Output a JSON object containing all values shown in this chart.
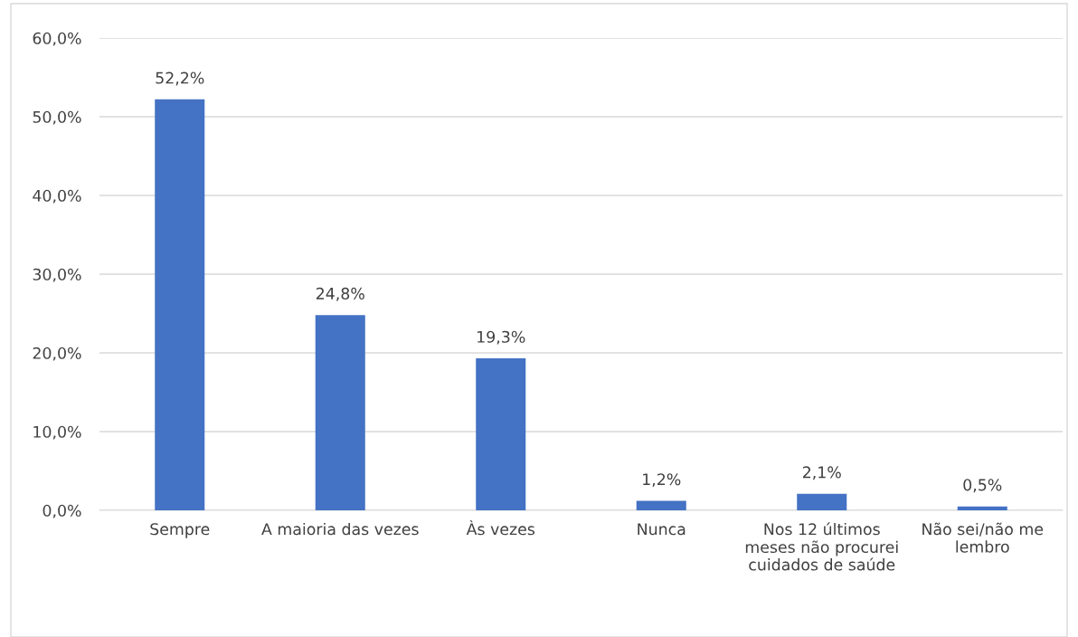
{
  "chart_data": {
    "type": "bar",
    "categories": [
      "Sempre",
      "A maioria das vezes",
      "Às vezes",
      "Nunca",
      "Nos 12 últimos meses não procurei cuidados de saúde",
      "Não sei/não me lembro"
    ],
    "values": [
      52.2,
      24.8,
      19.3,
      1.2,
      2.1,
      0.5
    ],
    "value_labels": [
      "52,2%",
      "24,8%",
      "19,3%",
      "1,2%",
      "2,1%",
      "0,5%"
    ],
    "color": "#4472c4",
    "ylim": [
      0,
      60
    ],
    "yticks": [
      {
        "value": 0,
        "label": "0,0%"
      },
      {
        "value": 10,
        "label": "10,0%"
      },
      {
        "value": 20,
        "label": "20,0%"
      },
      {
        "value": 30,
        "label": "30,0%"
      },
      {
        "value": 40,
        "label": "40,0%"
      },
      {
        "value": 50,
        "label": "50,0%"
      },
      {
        "value": 60,
        "label": "60,0%"
      }
    ],
    "grid": "y",
    "legend": false
  }
}
